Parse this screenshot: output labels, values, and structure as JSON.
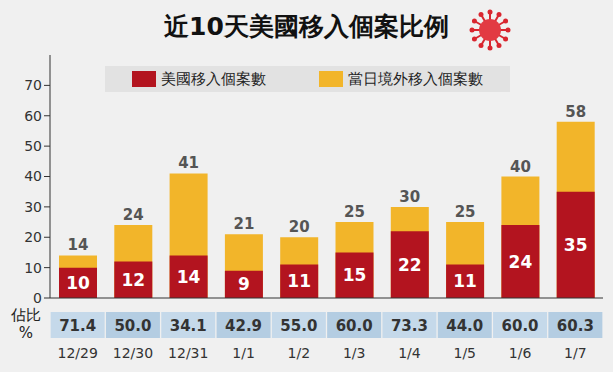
{
  "chart_data": {
    "type": "bar",
    "title": "近10天美國移入個案比例",
    "categories": [
      "12/29",
      "12/30",
      "12/31",
      "1/1",
      "1/2",
      "1/3",
      "1/4",
      "1/5",
      "1/6",
      "1/7"
    ],
    "series": [
      {
        "name": "美國移入個案數",
        "color": "#b3141f",
        "values": [
          10,
          12,
          14,
          9,
          11,
          15,
          22,
          11,
          24,
          35
        ]
      },
      {
        "name": "當日境外移入個案數",
        "color": "#f2b52a",
        "values": [
          14,
          24,
          41,
          21,
          20,
          25,
          30,
          25,
          40,
          58
        ]
      }
    ],
    "ylim": [
      0,
      80
    ],
    "yticks": [
      0,
      10,
      20,
      30,
      40,
      50,
      60,
      70
    ],
    "data_labels": true,
    "legend": "top",
    "share": {
      "label": "佔比 %",
      "values": [
        71.4,
        50,
        34.1,
        42.9,
        55,
        60,
        73.3,
        44,
        60,
        60.3
      ],
      "value_labels": [
        "71.4",
        "50.0",
        "34.1",
        "42.9",
        "55.0",
        "60.0",
        "73.3",
        "44.0",
        "60.0",
        "60.3"
      ]
    }
  }
}
